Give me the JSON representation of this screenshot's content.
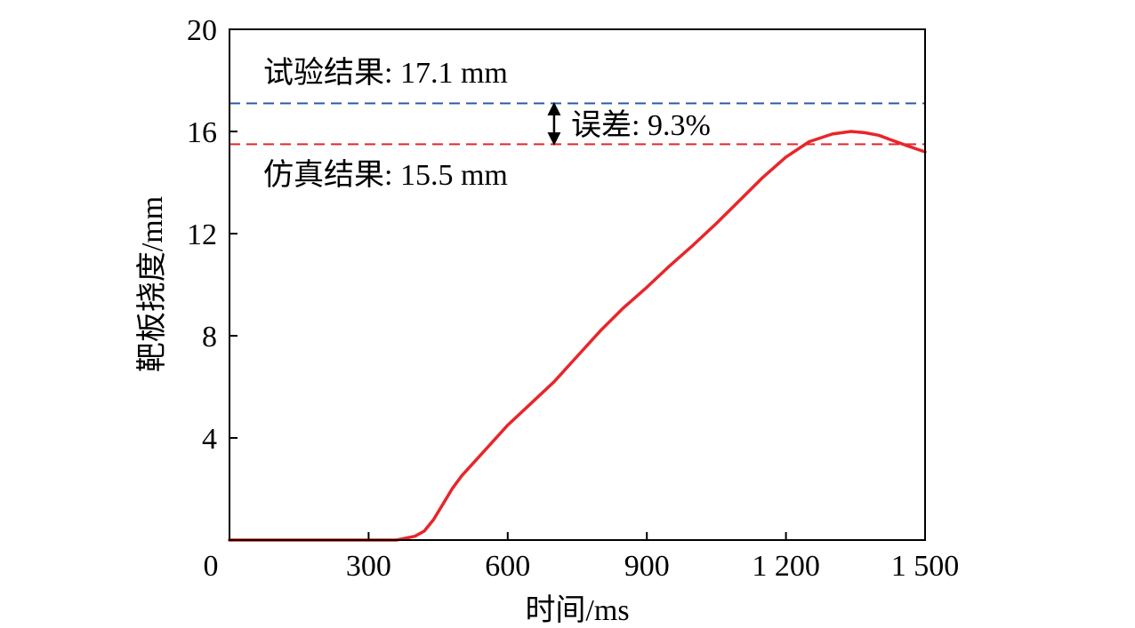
{
  "chart_data": {
    "type": "line",
    "title": "",
    "xlabel": "时间/ms",
    "ylabel": "靶板挠度/mm",
    "xlim": [
      0,
      1500
    ],
    "ylim": [
      0,
      20
    ],
    "x_ticks": [
      0,
      300,
      600,
      900,
      1200,
      1500
    ],
    "x_tick_labels": [
      "0",
      "300",
      "600",
      "900",
      "1 200",
      "1 500"
    ],
    "y_ticks": [
      4,
      8,
      12,
      16,
      20
    ],
    "y_tick_labels": [
      "4",
      "8",
      "12",
      "16",
      "20"
    ],
    "grid": false,
    "series": [
      {
        "color": "#e8262a",
        "x": [
          0,
          300,
          360,
          400,
          420,
          440,
          460,
          480,
          500,
          550,
          600,
          650,
          700,
          750,
          800,
          850,
          900,
          950,
          1000,
          1050,
          1100,
          1150,
          1200,
          1250,
          1300,
          1340,
          1370,
          1400,
          1430,
          1460,
          1500
        ],
        "y": [
          0,
          0,
          0,
          0.15,
          0.35,
          0.8,
          1.4,
          2.0,
          2.5,
          3.5,
          4.5,
          5.35,
          6.2,
          7.2,
          8.2,
          9.1,
          9.9,
          10.75,
          11.55,
          12.4,
          13.3,
          14.2,
          15.0,
          15.6,
          15.9,
          16.0,
          15.95,
          15.85,
          15.65,
          15.45,
          15.2
        ]
      }
    ],
    "reference_lines": [
      {
        "y": 17.1,
        "color": "#2b5ea7",
        "style": "dashed"
      },
      {
        "y": 15.5,
        "color": "#e8262a",
        "style": "dashed"
      }
    ],
    "annotations": {
      "test_result": "试验结果: 17.1 mm",
      "sim_result": "仿真结果: 15.5 mm",
      "error": "误差: 9.3%"
    },
    "error_arrow": {
      "x": 700,
      "y_top": 17.1,
      "y_bottom": 15.5
    }
  }
}
